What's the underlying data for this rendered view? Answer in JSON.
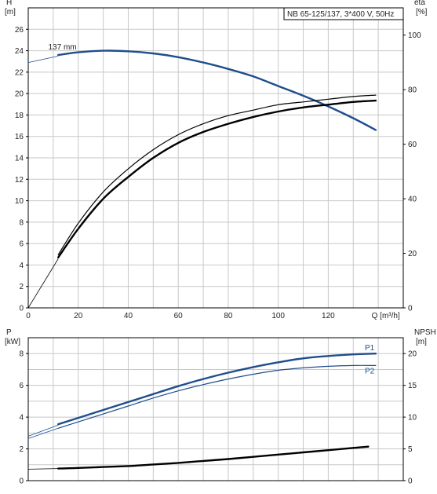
{
  "chart_data": [
    {
      "type": "line",
      "title": "NB 65-125/137, 3*400 V, 50Hz",
      "xlabel": "Q [m³/h]",
      "xlim": [
        0,
        150
      ],
      "xticks": [
        0,
        20,
        40,
        60,
        80,
        100,
        120
      ],
      "left_axis": {
        "label_top": "H",
        "label_unit": "[m]",
        "ylim": [
          0,
          28
        ],
        "ticks": [
          0,
          2,
          4,
          6,
          8,
          10,
          12,
          14,
          16,
          18,
          20,
          22,
          24,
          26
        ]
      },
      "right_axis": {
        "label_top": "eta",
        "label_unit": "[%]",
        "ylim": [
          0,
          110
        ],
        "ticks": [
          0,
          20,
          40,
          60,
          80,
          100
        ]
      },
      "grid": true,
      "series": [
        {
          "name": "137 mm",
          "axis": "left",
          "color": "#1f4e8c",
          "thin_extension": [
            [
              0,
              22.9
            ],
            [
              12,
              23.5
            ]
          ],
          "x": [
            12,
            20,
            30,
            40,
            50,
            60,
            70,
            80,
            90,
            100,
            110,
            120,
            130,
            139
          ],
          "y": [
            23.6,
            23.85,
            24.0,
            23.95,
            23.75,
            23.4,
            22.9,
            22.3,
            21.6,
            20.7,
            19.8,
            18.8,
            17.7,
            16.6
          ]
        },
        {
          "axis": "right",
          "color": "#000000",
          "thin_extension": [
            [
              0,
              0
            ],
            [
              12,
              18
            ]
          ],
          "x": [
            12,
            20,
            30,
            40,
            50,
            60,
            70,
            80,
            90,
            100,
            110,
            120,
            130,
            139
          ],
          "y": [
            18.5,
            29,
            40,
            48,
            55,
            60.5,
            64.5,
            67.5,
            70,
            72,
            73.5,
            74.5,
            75.5,
            76
          ]
        },
        {
          "axis": "right",
          "color": "#000000",
          "thin": true,
          "x": [
            12,
            20,
            30,
            40,
            50,
            60,
            70,
            80,
            90,
            100,
            110,
            120,
            130,
            139
          ],
          "y": [
            19.5,
            31,
            42.5,
            51,
            58,
            63.5,
            67.5,
            70.5,
            72.5,
            74.5,
            75.5,
            76.5,
            77.5,
            78
          ]
        }
      ]
    },
    {
      "type": "line",
      "xlim": [
        0,
        150
      ],
      "left_axis": {
        "label_top": "P",
        "label_unit": "[kW]",
        "ylim": [
          0,
          9
        ],
        "ticks": [
          0,
          2,
          4,
          6,
          8
        ]
      },
      "right_axis": {
        "label_top": "NPSH",
        "label_unit": "[m]",
        "ylim": [
          0,
          22.5
        ],
        "ticks": [
          0,
          5,
          10,
          15,
          20
        ]
      },
      "grid": true,
      "series": [
        {
          "name": "P1",
          "axis": "left",
          "color": "#1f4e8c",
          "thin_extension": [
            [
              0,
              2.8
            ],
            [
              12,
              3.5
            ]
          ],
          "x": [
            12,
            20,
            30,
            40,
            50,
            60,
            70,
            80,
            90,
            100,
            110,
            120,
            130,
            139
          ],
          "y": [
            3.55,
            3.95,
            4.45,
            4.95,
            5.45,
            5.95,
            6.4,
            6.8,
            7.15,
            7.45,
            7.7,
            7.85,
            7.95,
            8.0
          ]
        },
        {
          "name": "P2",
          "axis": "left",
          "color": "#1f4e8c",
          "thin": true,
          "thin_extension": [
            [
              0,
              2.65
            ],
            [
              12,
              3.3
            ]
          ],
          "x": [
            12,
            20,
            30,
            40,
            50,
            60,
            70,
            80,
            90,
            100,
            110,
            120,
            130,
            139
          ],
          "y": [
            3.3,
            3.7,
            4.2,
            4.7,
            5.2,
            5.65,
            6.05,
            6.4,
            6.7,
            6.95,
            7.1,
            7.2,
            7.25,
            7.25
          ]
        },
        {
          "axis": "right",
          "color": "#000000",
          "thin_extension": [
            [
              0,
              1.8
            ],
            [
              12,
              1.9
            ]
          ],
          "x": [
            12,
            20,
            30,
            40,
            50,
            60,
            70,
            80,
            90,
            100,
            110,
            120,
            130,
            136
          ],
          "y": [
            1.9,
            2.0,
            2.15,
            2.3,
            2.55,
            2.8,
            3.1,
            3.4,
            3.75,
            4.1,
            4.45,
            4.8,
            5.15,
            5.35
          ]
        }
      ]
    }
  ]
}
